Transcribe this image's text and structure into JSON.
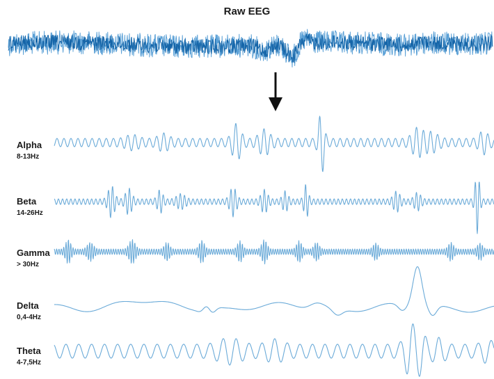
{
  "title": "Raw EEG",
  "colors": {
    "raw_dark": "#1565a8",
    "raw_light": "#5aa0d6",
    "band_wave": "#6aaad8",
    "arrow": "#111111",
    "text": "#1a1a1a"
  },
  "bands": [
    {
      "name": "Alpha",
      "range": "8-13Hz"
    },
    {
      "name": "Beta",
      "range": "14-26Hz"
    },
    {
      "name": "Gamma",
      "range": "> 30Hz"
    },
    {
      "name": "Delta",
      "range": "0,4-4Hz"
    },
    {
      "name": "Theta",
      "range": "4-7,5Hz"
    }
  ],
  "icons": {
    "arrow": "down-arrow-icon"
  }
}
